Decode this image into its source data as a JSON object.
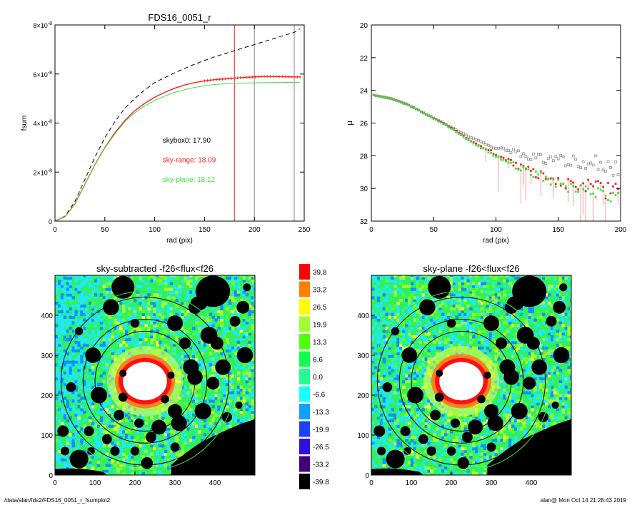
{
  "footer": {
    "path": "/data/alan/fds2/FDS16_0051_r_fsumplot2",
    "user_stamp": "alan@  Mon Oct 14 21:28:43 2019"
  },
  "colors": {
    "red": "#ff2020",
    "green": "#40e040",
    "gray": "#888888",
    "black": "#000000"
  },
  "chart_data": [
    {
      "id": "fsum",
      "type": "line",
      "title": "FDS16_0051_r",
      "xlabel": "rad (pix)",
      "ylabel": "fsum",
      "xlim": [
        0,
        250
      ],
      "ylim": [
        0,
        8e-08
      ],
      "xticks": [
        0,
        50,
        100,
        150,
        200,
        250
      ],
      "ytick_values": [
        0,
        2e-08,
        4e-08,
        6e-08,
        8e-08
      ],
      "ytick_labels": [
        {
          "base": "0",
          "exp": ""
        },
        {
          "base": "2×10",
          "exp": "-8"
        },
        {
          "base": "4×10",
          "exp": "-8"
        },
        {
          "base": "6×10",
          "exp": "-8"
        },
        {
          "base": "8×10",
          "exp": "-8"
        }
      ],
      "vlines": [
        {
          "x": 180,
          "color": "red"
        },
        {
          "x": 200,
          "color": "gray"
        },
        {
          "x": 240,
          "color": "gray"
        }
      ],
      "annotations": [
        {
          "text": "skybox0: 17.90",
          "color": "black",
          "x": 108,
          "y": 3.2e-08
        },
        {
          "text": "sky-range: 18.09",
          "color": "red",
          "x": 108,
          "y": 2.4e-08
        },
        {
          "text": "sky-plane: 18.12",
          "color": "green",
          "x": 108,
          "y": 1.6e-08
        }
      ],
      "series": [
        {
          "color": "black",
          "style": "dashed",
          "x": [
            0,
            10,
            20,
            30,
            40,
            50,
            60,
            70,
            80,
            90,
            100,
            120,
            140,
            160,
            180,
            200,
            220,
            240,
            246
          ],
          "y": [
            0,
            2e-09,
            8e-09,
            1.7e-08,
            2.6e-08,
            3.4e-08,
            4.05e-08,
            4.6e-08,
            5e-08,
            5.35e-08,
            5.65e-08,
            6.05e-08,
            6.4e-08,
            6.7e-08,
            6.95e-08,
            7.2e-08,
            7.45e-08,
            7.7e-08,
            7.85e-08
          ]
        },
        {
          "color": "red",
          "style": "solid",
          "markers": true,
          "x": [
            0,
            10,
            20,
            30,
            40,
            50,
            60,
            70,
            80,
            90,
            100,
            110,
            120,
            130,
            140,
            150,
            160,
            170,
            180,
            190,
            200,
            210,
            220,
            230,
            240,
            246
          ],
          "y": [
            0,
            1.8e-09,
            7e-09,
            1.5e-08,
            2.3e-08,
            3e-08,
            3.6e-08,
            4.1e-08,
            4.5e-08,
            4.8e-08,
            5.05e-08,
            5.25e-08,
            5.42e-08,
            5.55e-08,
            5.65e-08,
            5.72e-08,
            5.77e-08,
            5.8e-08,
            5.83e-08,
            5.86e-08,
            5.88e-08,
            5.9e-08,
            5.9e-08,
            5.89e-08,
            5.88e-08,
            5.88e-08
          ]
        },
        {
          "color": "green",
          "style": "solid",
          "x": [
            0,
            10,
            20,
            30,
            40,
            50,
            60,
            70,
            80,
            90,
            100,
            110,
            120,
            130,
            140,
            150,
            160,
            170,
            180,
            190,
            200,
            210,
            220,
            230,
            240,
            246
          ],
          "y": [
            0,
            1.8e-09,
            7e-09,
            1.5e-08,
            2.3e-08,
            2.98e-08,
            3.55e-08,
            4.05e-08,
            4.42e-08,
            4.7e-08,
            4.92e-08,
            5.1e-08,
            5.25e-08,
            5.36e-08,
            5.45e-08,
            5.52e-08,
            5.57e-08,
            5.6e-08,
            5.62e-08,
            5.63e-08,
            5.64e-08,
            5.65e-08,
            5.65e-08,
            5.66e-08,
            5.66e-08,
            5.67e-08
          ]
        }
      ]
    },
    {
      "id": "mu",
      "type": "scatter",
      "title": "",
      "xlabel": "rad (pix)",
      "ylabel": "μ",
      "xlim": [
        0,
        200
      ],
      "ylim": [
        32,
        20
      ],
      "xticks": [
        0,
        50,
        100,
        150,
        200
      ],
      "yticks": [
        20,
        22,
        24,
        26,
        28,
        30,
        32
      ],
      "series": [
        {
          "name": "",
          "color": "gray",
          "marker": "open-square",
          "x": [
            2,
            10,
            20,
            30,
            40,
            50,
            60,
            70,
            80,
            90,
            100,
            110,
            120,
            130,
            140,
            150,
            160,
            170,
            180,
            190,
            200
          ],
          "y": [
            24.3,
            24.4,
            24.6,
            24.9,
            25.3,
            25.7,
            26.1,
            26.5,
            26.9,
            27.2,
            27.5,
            27.7,
            27.9,
            28.1,
            28.2,
            28.3,
            28.4,
            28.5,
            28.5,
            28.6,
            28.7
          ]
        },
        {
          "name": "",
          "color": "red",
          "marker": "filled-square",
          "x": [
            2,
            10,
            20,
            30,
            40,
            50,
            60,
            70,
            80,
            90,
            100,
            110,
            120,
            130,
            140,
            150,
            160,
            170,
            180,
            190,
            200
          ],
          "y": [
            24.3,
            24.4,
            24.6,
            24.9,
            25.3,
            25.7,
            26.1,
            26.6,
            27.1,
            27.5,
            27.9,
            28.3,
            28.7,
            29.0,
            29.3,
            29.5,
            29.7,
            29.9,
            30.0,
            30.2,
            30.3
          ]
        },
        {
          "name": "",
          "color": "green",
          "marker": "filled-square",
          "x": [
            2,
            10,
            20,
            30,
            40,
            50,
            60,
            70,
            80,
            90,
            100,
            110,
            120,
            130,
            140,
            150,
            160,
            170,
            180,
            190,
            200
          ],
          "y": [
            24.3,
            24.4,
            24.6,
            24.9,
            25.3,
            25.7,
            26.15,
            26.65,
            27.15,
            27.6,
            28.0,
            28.4,
            28.8,
            29.1,
            29.4,
            29.7,
            29.9,
            30.1,
            30.3,
            30.5,
            30.7
          ]
        }
      ]
    },
    {
      "id": "img-sky-subtracted",
      "type": "heatmap",
      "title": "sky-subtracted -f26<flux<f26",
      "xlim": [
        0,
        500
      ],
      "ylim": [
        0,
        500
      ],
      "xticks": [
        0,
        100,
        200,
        300,
        400
      ],
      "yticks": [
        0,
        100,
        200,
        300,
        400
      ],
      "background": "green-noise",
      "center": [
        225,
        235
      ],
      "circles": [
        {
          "r": 125,
          "color": "black"
        },
        {
          "r": 155,
          "color": "black"
        },
        {
          "r": 210,
          "color": "black"
        },
        {
          "r": 225,
          "color": "green"
        }
      ]
    },
    {
      "id": "colorbar",
      "type": "legend",
      "labels": [
        "39.8",
        "33.2",
        "26.5",
        "19.9",
        "13.3",
        "6.6",
        "0.0",
        "-6.6",
        "-13.3",
        "-19.9",
        "-26.5",
        "-33.2",
        "-39.8"
      ],
      "colors": [
        "#ff0000",
        "#ff7f00",
        "#ffff00",
        "#a0ff30",
        "#50ff10",
        "#10ff50",
        "#20ff90",
        "#20ffff",
        "#10a0ff",
        "#2040ff",
        "#3010e0",
        "#400080",
        "#000000"
      ]
    },
    {
      "id": "img-sky-plane",
      "type": "heatmap",
      "title": "sky-plane -f26<flux<f26",
      "xlim": [
        0,
        500
      ],
      "ylim": [
        0,
        500
      ],
      "xticks": [
        0,
        100,
        200,
        300,
        400
      ],
      "yticks": [
        0,
        100,
        200,
        300,
        400
      ],
      "background": "green-noise",
      "center": [
        225,
        235
      ],
      "circles": [
        {
          "r": 125,
          "color": "black"
        },
        {
          "r": 155,
          "color": "black"
        },
        {
          "r": 210,
          "color": "black"
        },
        {
          "r": 225,
          "color": "green"
        }
      ]
    }
  ]
}
